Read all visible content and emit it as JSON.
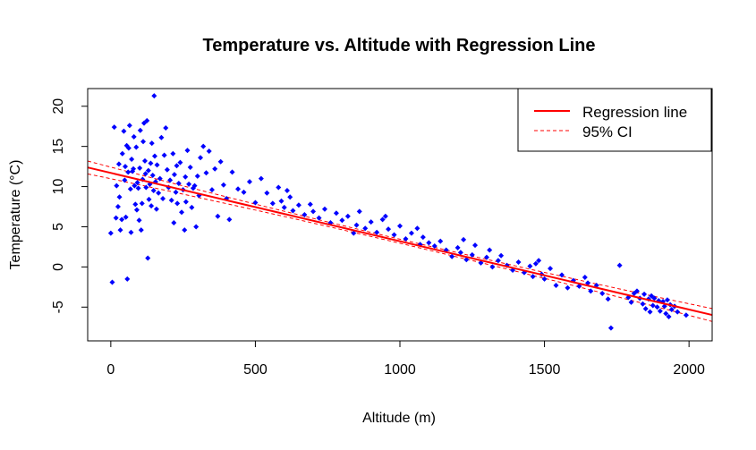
{
  "chart_data": {
    "type": "scatter",
    "title": "Temperature vs. Altitude with Regression Line",
    "xlabel": "Altitude (m)",
    "ylabel": "Temperature (°C)",
    "xlim": [
      -80,
      2080
    ],
    "ylim": [
      -9.2,
      22.2
    ],
    "x_ticks": [
      0,
      500,
      1000,
      1500,
      2000
    ],
    "x_tick_labels": [
      "0",
      "500",
      "1000",
      "1500",
      "2000"
    ],
    "y_ticks": [
      -5,
      0,
      5,
      10,
      15,
      20
    ],
    "y_tick_labels": [
      "-5",
      "0",
      "5",
      "10",
      "15",
      "20"
    ],
    "grid": false,
    "legend_position": "top-right",
    "legend": [
      {
        "label": "Regression line",
        "color": "#ff0000",
        "style": "solid"
      },
      {
        "label": "95% CI",
        "color": "#ff0000",
        "style": "dashed"
      }
    ],
    "point_color": "#0000ff",
    "regression": {
      "intercept": 11.7,
      "slope": -0.0085
    },
    "ci_band": {
      "x": [
        -80,
        2080
      ],
      "lower_offset_at_edges": [
        -0.8,
        -0.8
      ],
      "upper_offset_at_edges": [
        0.8,
        0.8
      ]
    },
    "series": [
      {
        "points": [
          [
            0,
            4.2
          ],
          [
            5,
            -1.9
          ],
          [
            12,
            17.4
          ],
          [
            18,
            6.1
          ],
          [
            20,
            10.1
          ],
          [
            25,
            7.5
          ],
          [
            28,
            12.8
          ],
          [
            30,
            8.7
          ],
          [
            33,
            4.6
          ],
          [
            38,
            5.9
          ],
          [
            40,
            14.1
          ],
          [
            45,
            16.9
          ],
          [
            48,
            10.8
          ],
          [
            50,
            12.5
          ],
          [
            52,
            6.2
          ],
          [
            55,
            15.1
          ],
          [
            57,
            -1.5
          ],
          [
            60,
            11.8
          ],
          [
            62,
            14.8
          ],
          [
            65,
            17.6
          ],
          [
            68,
            9.7
          ],
          [
            70,
            4.3
          ],
          [
            72,
            13.4
          ],
          [
            75,
            11.9
          ],
          [
            78,
            12.2
          ],
          [
            80,
            16.2
          ],
          [
            82,
            10.1
          ],
          [
            85,
            7.8
          ],
          [
            88,
            14.9
          ],
          [
            90,
            7.1
          ],
          [
            92,
            10.5
          ],
          [
            95,
            9.8
          ],
          [
            98,
            5.8
          ],
          [
            100,
            12.3
          ],
          [
            102,
            17.0
          ],
          [
            105,
            4.6
          ],
          [
            108,
            7.9
          ],
          [
            110,
            10.9
          ],
          [
            112,
            15.6
          ],
          [
            115,
            17.9
          ],
          [
            118,
            13.2
          ],
          [
            120,
            11.6
          ],
          [
            122,
            9.9
          ],
          [
            125,
            18.2
          ],
          [
            128,
            1.1
          ],
          [
            130,
            12.0
          ],
          [
            132,
            8.4
          ],
          [
            135,
            10.3
          ],
          [
            138,
            12.9
          ],
          [
            140,
            7.6
          ],
          [
            142,
            15.4
          ],
          [
            145,
            11.4
          ],
          [
            148,
            9.5
          ],
          [
            150,
            21.3
          ],
          [
            152,
            13.8
          ],
          [
            155,
            10.6
          ],
          [
            158,
            7.2
          ],
          [
            160,
            12.7
          ],
          [
            165,
            9.2
          ],
          [
            170,
            11.0
          ],
          [
            175,
            16.1
          ],
          [
            180,
            8.5
          ],
          [
            185,
            13.9
          ],
          [
            190,
            17.3
          ],
          [
            195,
            12.1
          ],
          [
            200,
            9.9
          ],
          [
            205,
            10.8
          ],
          [
            210,
            8.3
          ],
          [
            215,
            14.1
          ],
          [
            218,
            5.5
          ],
          [
            220,
            11.5
          ],
          [
            225,
            9.3
          ],
          [
            228,
            12.6
          ],
          [
            230,
            7.9
          ],
          [
            235,
            10.4
          ],
          [
            240,
            13.0
          ],
          [
            245,
            6.8
          ],
          [
            250,
            9.6
          ],
          [
            255,
            4.6
          ],
          [
            258,
            11.2
          ],
          [
            260,
            8.1
          ],
          [
            265,
            14.5
          ],
          [
            270,
            10.3
          ],
          [
            275,
            12.4
          ],
          [
            280,
            7.4
          ],
          [
            285,
            9.8
          ],
          [
            290,
            10.1
          ],
          [
            295,
            5.0
          ],
          [
            300,
            11.3
          ],
          [
            305,
            8.9
          ],
          [
            310,
            13.6
          ],
          [
            320,
            15.0
          ],
          [
            330,
            11.7
          ],
          [
            340,
            14.4
          ],
          [
            350,
            9.6
          ],
          [
            360,
            12.2
          ],
          [
            370,
            6.3
          ],
          [
            380,
            13.1
          ],
          [
            390,
            10.2
          ],
          [
            400,
            8.5
          ],
          [
            410,
            5.9
          ],
          [
            420,
            11.8
          ],
          [
            440,
            9.7
          ],
          [
            460,
            9.3
          ],
          [
            480,
            10.6
          ],
          [
            500,
            8.0
          ],
          [
            520,
            11.0
          ],
          [
            540,
            9.2
          ],
          [
            560,
            7.9
          ],
          [
            580,
            9.9
          ],
          [
            590,
            8.2
          ],
          [
            600,
            7.4
          ],
          [
            610,
            9.5
          ],
          [
            620,
            8.7
          ],
          [
            630,
            7.0
          ],
          [
            650,
            7.7
          ],
          [
            670,
            6.5
          ],
          [
            690,
            7.8
          ],
          [
            700,
            6.9
          ],
          [
            720,
            6.1
          ],
          [
            740,
            7.2
          ],
          [
            760,
            5.5
          ],
          [
            780,
            6.7
          ],
          [
            800,
            5.8
          ],
          [
            820,
            6.3
          ],
          [
            840,
            4.2
          ],
          [
            850,
            5.2
          ],
          [
            860,
            6.9
          ],
          [
            880,
            4.8
          ],
          [
            900,
            5.6
          ],
          [
            920,
            4.3
          ],
          [
            940,
            5.9
          ],
          [
            950,
            6.3
          ],
          [
            960,
            4.7
          ],
          [
            980,
            4.0
          ],
          [
            1000,
            5.1
          ],
          [
            1020,
            3.5
          ],
          [
            1040,
            4.2
          ],
          [
            1060,
            4.8
          ],
          [
            1070,
            2.8
          ],
          [
            1080,
            3.7
          ],
          [
            1100,
            3.0
          ],
          [
            1120,
            2.6
          ],
          [
            1140,
            3.2
          ],
          [
            1160,
            2.1
          ],
          [
            1180,
            1.3
          ],
          [
            1200,
            2.4
          ],
          [
            1210,
            1.8
          ],
          [
            1220,
            3.4
          ],
          [
            1230,
            0.9
          ],
          [
            1250,
            1.5
          ],
          [
            1260,
            2.7
          ],
          [
            1280,
            0.5
          ],
          [
            1300,
            1.2
          ],
          [
            1310,
            2.1
          ],
          [
            1320,
            0.0
          ],
          [
            1340,
            0.8
          ],
          [
            1350,
            1.4
          ],
          [
            1370,
            0.2
          ],
          [
            1390,
            -0.4
          ],
          [
            1410,
            0.6
          ],
          [
            1430,
            -0.7
          ],
          [
            1450,
            0.1
          ],
          [
            1460,
            -1.2
          ],
          [
            1470,
            0.4
          ],
          [
            1480,
            0.8
          ],
          [
            1490,
            -0.9
          ],
          [
            1500,
            -1.5
          ],
          [
            1520,
            -0.2
          ],
          [
            1540,
            -2.3
          ],
          [
            1560,
            -1.0
          ],
          [
            1580,
            -2.6
          ],
          [
            1600,
            -1.7
          ],
          [
            1620,
            -2.4
          ],
          [
            1640,
            -1.3
          ],
          [
            1650,
            -2.0
          ],
          [
            1660,
            -3.0
          ],
          [
            1680,
            -2.3
          ],
          [
            1700,
            -3.3
          ],
          [
            1720,
            -4.0
          ],
          [
            1730,
            -7.6
          ],
          [
            1760,
            0.2
          ],
          [
            1790,
            -3.8
          ],
          [
            1800,
            -4.4
          ],
          [
            1810,
            -3.3
          ],
          [
            1820,
            -3.0
          ],
          [
            1830,
            -3.9
          ],
          [
            1840,
            -4.6
          ],
          [
            1845,
            -3.4
          ],
          [
            1850,
            -5.2
          ],
          [
            1860,
            -4.0
          ],
          [
            1865,
            -5.6
          ],
          [
            1870,
            -3.6
          ],
          [
            1875,
            -4.8
          ],
          [
            1880,
            -3.9
          ],
          [
            1890,
            -5.0
          ],
          [
            1895,
            -4.2
          ],
          [
            1900,
            -5.5
          ],
          [
            1910,
            -4.3
          ],
          [
            1915,
            -4.9
          ],
          [
            1920,
            -5.8
          ],
          [
            1925,
            -4.1
          ],
          [
            1930,
            -6.2
          ],
          [
            1935,
            -4.7
          ],
          [
            1940,
            -5.3
          ],
          [
            1950,
            -4.9
          ],
          [
            1960,
            -5.6
          ],
          [
            1990,
            -6.0
          ]
        ]
      }
    ]
  }
}
